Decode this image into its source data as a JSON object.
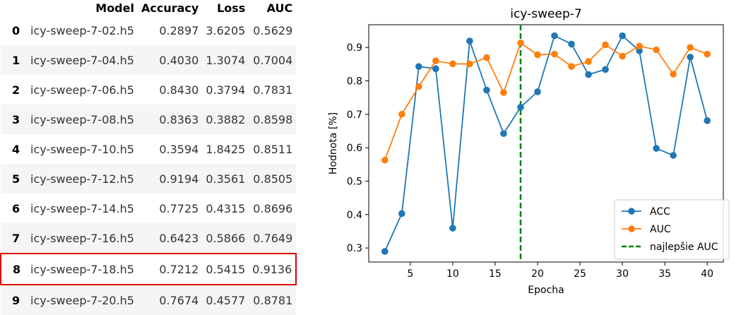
{
  "table": {
    "columns": [
      "Model",
      "Accuracy",
      "Loss",
      "AUC"
    ],
    "rows": [
      {
        "index": "0",
        "model": "icy-sweep-7-02.h5",
        "accuracy": "0.2897",
        "loss": "3.6205",
        "auc": "0.5629"
      },
      {
        "index": "1",
        "model": "icy-sweep-7-04.h5",
        "accuracy": "0.4030",
        "loss": "1.3074",
        "auc": "0.7004"
      },
      {
        "index": "2",
        "model": "icy-sweep-7-06.h5",
        "accuracy": "0.8430",
        "loss": "0.3794",
        "auc": "0.7831"
      },
      {
        "index": "3",
        "model": "icy-sweep-7-08.h5",
        "accuracy": "0.8363",
        "loss": "0.3882",
        "auc": "0.8598"
      },
      {
        "index": "4",
        "model": "icy-sweep-7-10.h5",
        "accuracy": "0.3594",
        "loss": "1.8425",
        "auc": "0.8511"
      },
      {
        "index": "5",
        "model": "icy-sweep-7-12.h5",
        "accuracy": "0.9194",
        "loss": "0.3561",
        "auc": "0.8505"
      },
      {
        "index": "6",
        "model": "icy-sweep-7-14.h5",
        "accuracy": "0.7725",
        "loss": "0.4315",
        "auc": "0.8696"
      },
      {
        "index": "7",
        "model": "icy-sweep-7-16.h5",
        "accuracy": "0.6423",
        "loss": "0.5866",
        "auc": "0.7649"
      },
      {
        "index": "8",
        "model": "icy-sweep-7-18.h5",
        "accuracy": "0.7212",
        "loss": "0.5415",
        "auc": "0.9136"
      },
      {
        "index": "9",
        "model": "icy-sweep-7-20.h5",
        "accuracy": "0.7674",
        "loss": "0.4577",
        "auc": "0.8781"
      }
    ],
    "highlighted_row": 8,
    "highlight_color": "#e00000"
  },
  "chart_data": {
    "type": "line",
    "title": "icy-sweep-7",
    "xlabel": "Epocha",
    "ylabel": "Hodnota [%]",
    "xlim": [
      0.1,
      41.9
    ],
    "ylim": [
      0.258,
      0.968
    ],
    "xticks": [
      5,
      10,
      15,
      20,
      25,
      30,
      35,
      40
    ],
    "yticks": [
      0.3,
      0.4,
      0.5,
      0.6,
      0.7,
      0.8,
      0.9
    ],
    "x": [
      2,
      4,
      6,
      8,
      10,
      12,
      14,
      16,
      18,
      20,
      22,
      24,
      26,
      28,
      30,
      32,
      34,
      36,
      38,
      40
    ],
    "series": [
      {
        "name": "ACC",
        "color": "#1f77b4",
        "values": [
          0.2897,
          0.403,
          0.843,
          0.8363,
          0.3594,
          0.9194,
          0.7725,
          0.6423,
          0.7212,
          0.7674,
          0.935,
          0.91,
          0.819,
          0.834,
          0.935,
          0.89,
          0.598,
          0.577,
          0.871,
          0.681
        ]
      },
      {
        "name": "AUC",
        "color": "#ff7f0e",
        "values": [
          0.5629,
          0.7004,
          0.7831,
          0.8598,
          0.8511,
          0.8505,
          0.8696,
          0.7649,
          0.9136,
          0.8781,
          0.88,
          0.843,
          0.858,
          0.908,
          0.874,
          0.904,
          0.893,
          0.82,
          0.9,
          0.88
        ]
      }
    ],
    "vline": {
      "name": "najlepšie AUC",
      "x": 18,
      "color": "#008000",
      "style": "dashed"
    },
    "legend_position": "lower right",
    "grid": false
  }
}
